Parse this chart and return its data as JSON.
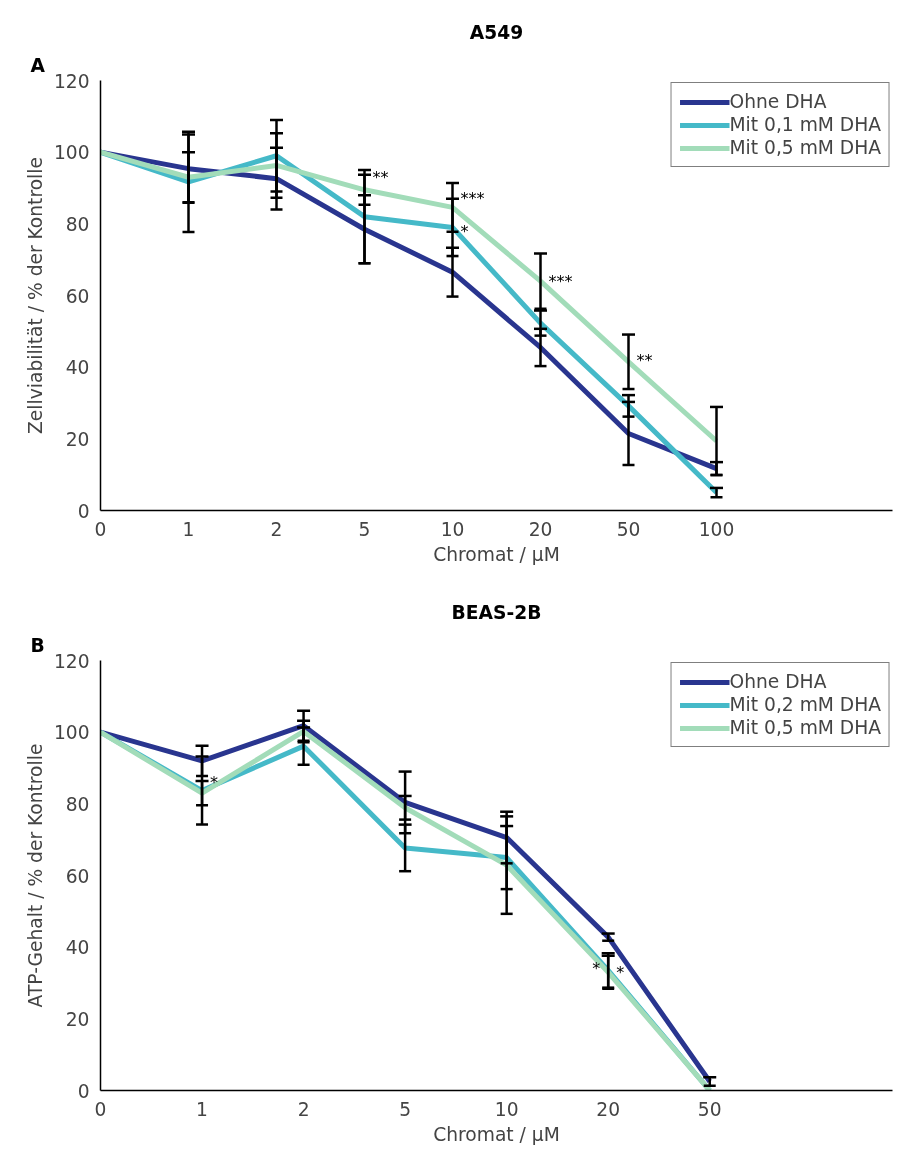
{
  "chart_data": [
    {
      "type": "line",
      "title": "A549",
      "xlabel": "Chromat / µM",
      "ylabel": "Zellviabilität / % der Kontrolle",
      "categories": [
        "0",
        "1",
        "2",
        "5",
        "10",
        "20",
        "50",
        "100"
      ],
      "ylim": [
        0,
        120
      ],
      "yticks": [
        0,
        20,
        40,
        60,
        80,
        100,
        120
      ],
      "grid": false,
      "legend": "top right",
      "marker": "none",
      "line_style": "solid",
      "series": [
        {
          "name": "Ohne DHA",
          "color": "#29358f",
          "values": [
            100,
            95.4,
            92.6,
            78.5,
            66.5,
            45.5,
            21.5,
            11.7
          ],
          "errors": [
            null,
            9.5,
            8.6,
            9.5,
            6.8,
            5.2,
            8.8,
            1.8
          ]
        },
        {
          "name": "Mit 0,1 mM DHA",
          "color": "#45b9c8",
          "values": [
            100,
            91.7,
            99,
            82,
            79,
            52.3,
            29.2,
            5
          ],
          "errors": [
            null,
            14,
            10,
            13,
            8,
            3.5,
            3,
            1.3
          ]
        },
        {
          "name": "Mit 0,5 mM DHA",
          "color": "#a2dcb9",
          "values": [
            100,
            93,
            96.3,
            89.5,
            84.6,
            64,
            41.5,
            19.4
          ],
          "errors": [
            null,
            7,
            9,
            4.2,
            6.8,
            7.7,
            7.6,
            9.5
          ]
        }
      ],
      "annotations": [
        "A",
        {
          "text": "**",
          "x": "5",
          "y": 93
        },
        {
          "text": "***",
          "x": "10",
          "y": 87
        },
        {
          "text": "*",
          "x": "10",
          "y": 78
        },
        {
          "text": "***",
          "x": "20",
          "y": 64
        },
        {
          "text": "**",
          "x": "50",
          "y": 42
        }
      ]
    },
    {
      "type": "line",
      "title": "BEAS-2B",
      "xlabel": "Chromat / µM",
      "ylabel": "ATP-Gehalt / % der Kontrolle",
      "categories": [
        "0",
        "1",
        "2",
        "5",
        "10",
        "20",
        "50"
      ],
      "ylim": [
        0,
        120
      ],
      "yticks": [
        0,
        20,
        40,
        60,
        80,
        100,
        120
      ],
      "grid": false,
      "legend": "top right",
      "marker": "none",
      "line_style": "solid",
      "series": [
        {
          "name": "Ohne DHA",
          "color": "#29358f",
          "values": [
            100,
            92,
            101.8,
            80.4,
            70.6,
            42.8,
            2.5
          ],
          "errors": [
            null,
            4.2,
            4.2,
            8.6,
            7.2,
            1,
            1.2
          ]
        },
        {
          "name": "Mit 0,2 mM DHA",
          "color": "#45b9c8",
          "values": [
            100,
            83.7,
            96.1,
            67.7,
            65,
            33.5,
            0
          ],
          "errors": [
            null,
            9.5,
            5.2,
            6.5,
            8.8,
            4.8,
            null
          ]
        },
        {
          "name": "Mit 0,5 mM DHA",
          "color": "#a2dcb9",
          "values": [
            100,
            83,
            100.2,
            78.9,
            62.9,
            33,
            0
          ],
          "errors": [
            null,
            3.4,
            3,
            3.3,
            13.6,
            4.6,
            null
          ]
        }
      ],
      "annotations": [
        "B",
        {
          "text": "*",
          "x": "1",
          "y": 86
        },
        {
          "text": "*",
          "x": "20",
          "y": 33
        },
        {
          "text": "*",
          "x": "20",
          "y": 34
        }
      ]
    }
  ]
}
